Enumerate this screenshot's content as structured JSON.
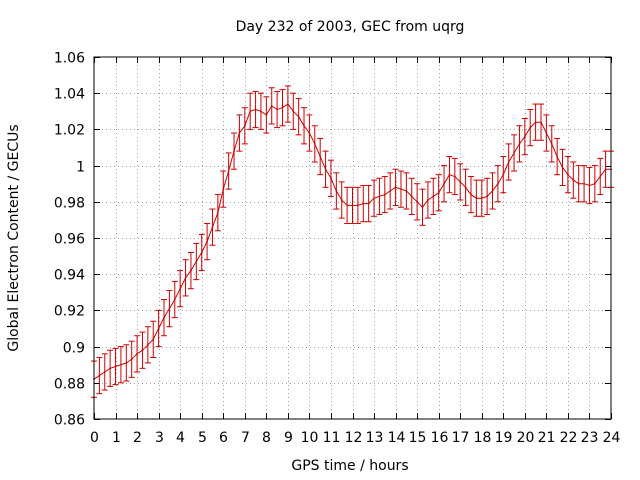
{
  "chart_data": {
    "type": "line",
    "title": "Day 232 of 2003, GEC from uqrg",
    "xlabel": "GPS time / hours",
    "ylabel": "Global Electron Content / GECUs",
    "xlim": [
      0,
      24
    ],
    "ylim": [
      0.86,
      1.06
    ],
    "x_ticks": [
      0,
      1,
      2,
      3,
      4,
      5,
      6,
      7,
      8,
      9,
      10,
      11,
      12,
      13,
      14,
      15,
      16,
      17,
      18,
      19,
      20,
      21,
      22,
      23,
      24
    ],
    "y_ticks": [
      {
        "value": 0.86,
        "label": "0.86"
      },
      {
        "value": 0.88,
        "label": "0.88"
      },
      {
        "value": 0.9,
        "label": "0.9"
      },
      {
        "value": 0.92,
        "label": "0.92"
      },
      {
        "value": 0.94,
        "label": "0.94"
      },
      {
        "value": 0.96,
        "label": "0.96"
      },
      {
        "value": 0.98,
        "label": "0.98"
      },
      {
        "value": 1.0,
        "label": "1"
      },
      {
        "value": 1.02,
        "label": "1.02"
      },
      {
        "value": 1.04,
        "label": "1.04"
      },
      {
        "value": 1.06,
        "label": "1.06"
      }
    ],
    "grid": true,
    "error_bar_half_width": 0.01,
    "series": [
      {
        "color": "#cc0000",
        "x": [
          0,
          0.25,
          0.5,
          0.75,
          1,
          1.25,
          1.5,
          1.75,
          2,
          2.25,
          2.5,
          2.75,
          3,
          3.25,
          3.5,
          3.75,
          4,
          4.25,
          4.5,
          4.75,
          5,
          5.25,
          5.5,
          5.75,
          6,
          6.25,
          6.5,
          6.75,
          7,
          7.25,
          7.5,
          7.75,
          8,
          8.25,
          8.5,
          8.75,
          9,
          9.25,
          9.5,
          9.75,
          10,
          10.25,
          10.5,
          10.75,
          11,
          11.25,
          11.5,
          11.75,
          12,
          12.25,
          12.5,
          12.75,
          13,
          13.25,
          13.5,
          13.75,
          14,
          14.25,
          14.5,
          14.75,
          15,
          15.25,
          15.5,
          15.75,
          16,
          16.25,
          16.5,
          16.75,
          17,
          17.25,
          17.5,
          17.75,
          18,
          18.25,
          18.5,
          18.75,
          19,
          19.25,
          19.5,
          19.75,
          20,
          20.25,
          20.5,
          20.75,
          21,
          21.25,
          21.5,
          21.75,
          22,
          22.25,
          22.5,
          22.75,
          23,
          23.25,
          23.5,
          23.75,
          24
        ],
        "y": [
          0.882,
          0.884,
          0.886,
          0.888,
          0.889,
          0.89,
          0.891,
          0.893,
          0.896,
          0.898,
          0.901,
          0.904,
          0.91,
          0.916,
          0.921,
          0.926,
          0.932,
          0.938,
          0.942,
          0.947,
          0.952,
          0.958,
          0.966,
          0.974,
          0.987,
          0.997,
          1.008,
          1.018,
          1.022,
          1.03,
          1.031,
          1.03,
          1.028,
          1.033,
          1.031,
          1.032,
          1.034,
          1.03,
          1.027,
          1.022,
          1.018,
          1.012,
          1.005,
          0.998,
          0.993,
          0.986,
          0.981,
          0.978,
          0.978,
          0.978,
          0.979,
          0.979,
          0.982,
          0.983,
          0.984,
          0.986,
          0.988,
          0.987,
          0.986,
          0.983,
          0.98,
          0.977,
          0.981,
          0.983,
          0.985,
          0.99,
          0.995,
          0.994,
          0.991,
          0.988,
          0.984,
          0.982,
          0.982,
          0.983,
          0.986,
          0.99,
          0.995,
          1.002,
          1.007,
          1.012,
          1.016,
          1.021,
          1.024,
          1.024,
          1.018,
          1.012,
          1.005,
          0.999,
          0.995,
          0.992,
          0.99,
          0.99,
          0.989,
          0.99,
          0.994,
          0.998,
          0.998
        ]
      }
    ]
  }
}
